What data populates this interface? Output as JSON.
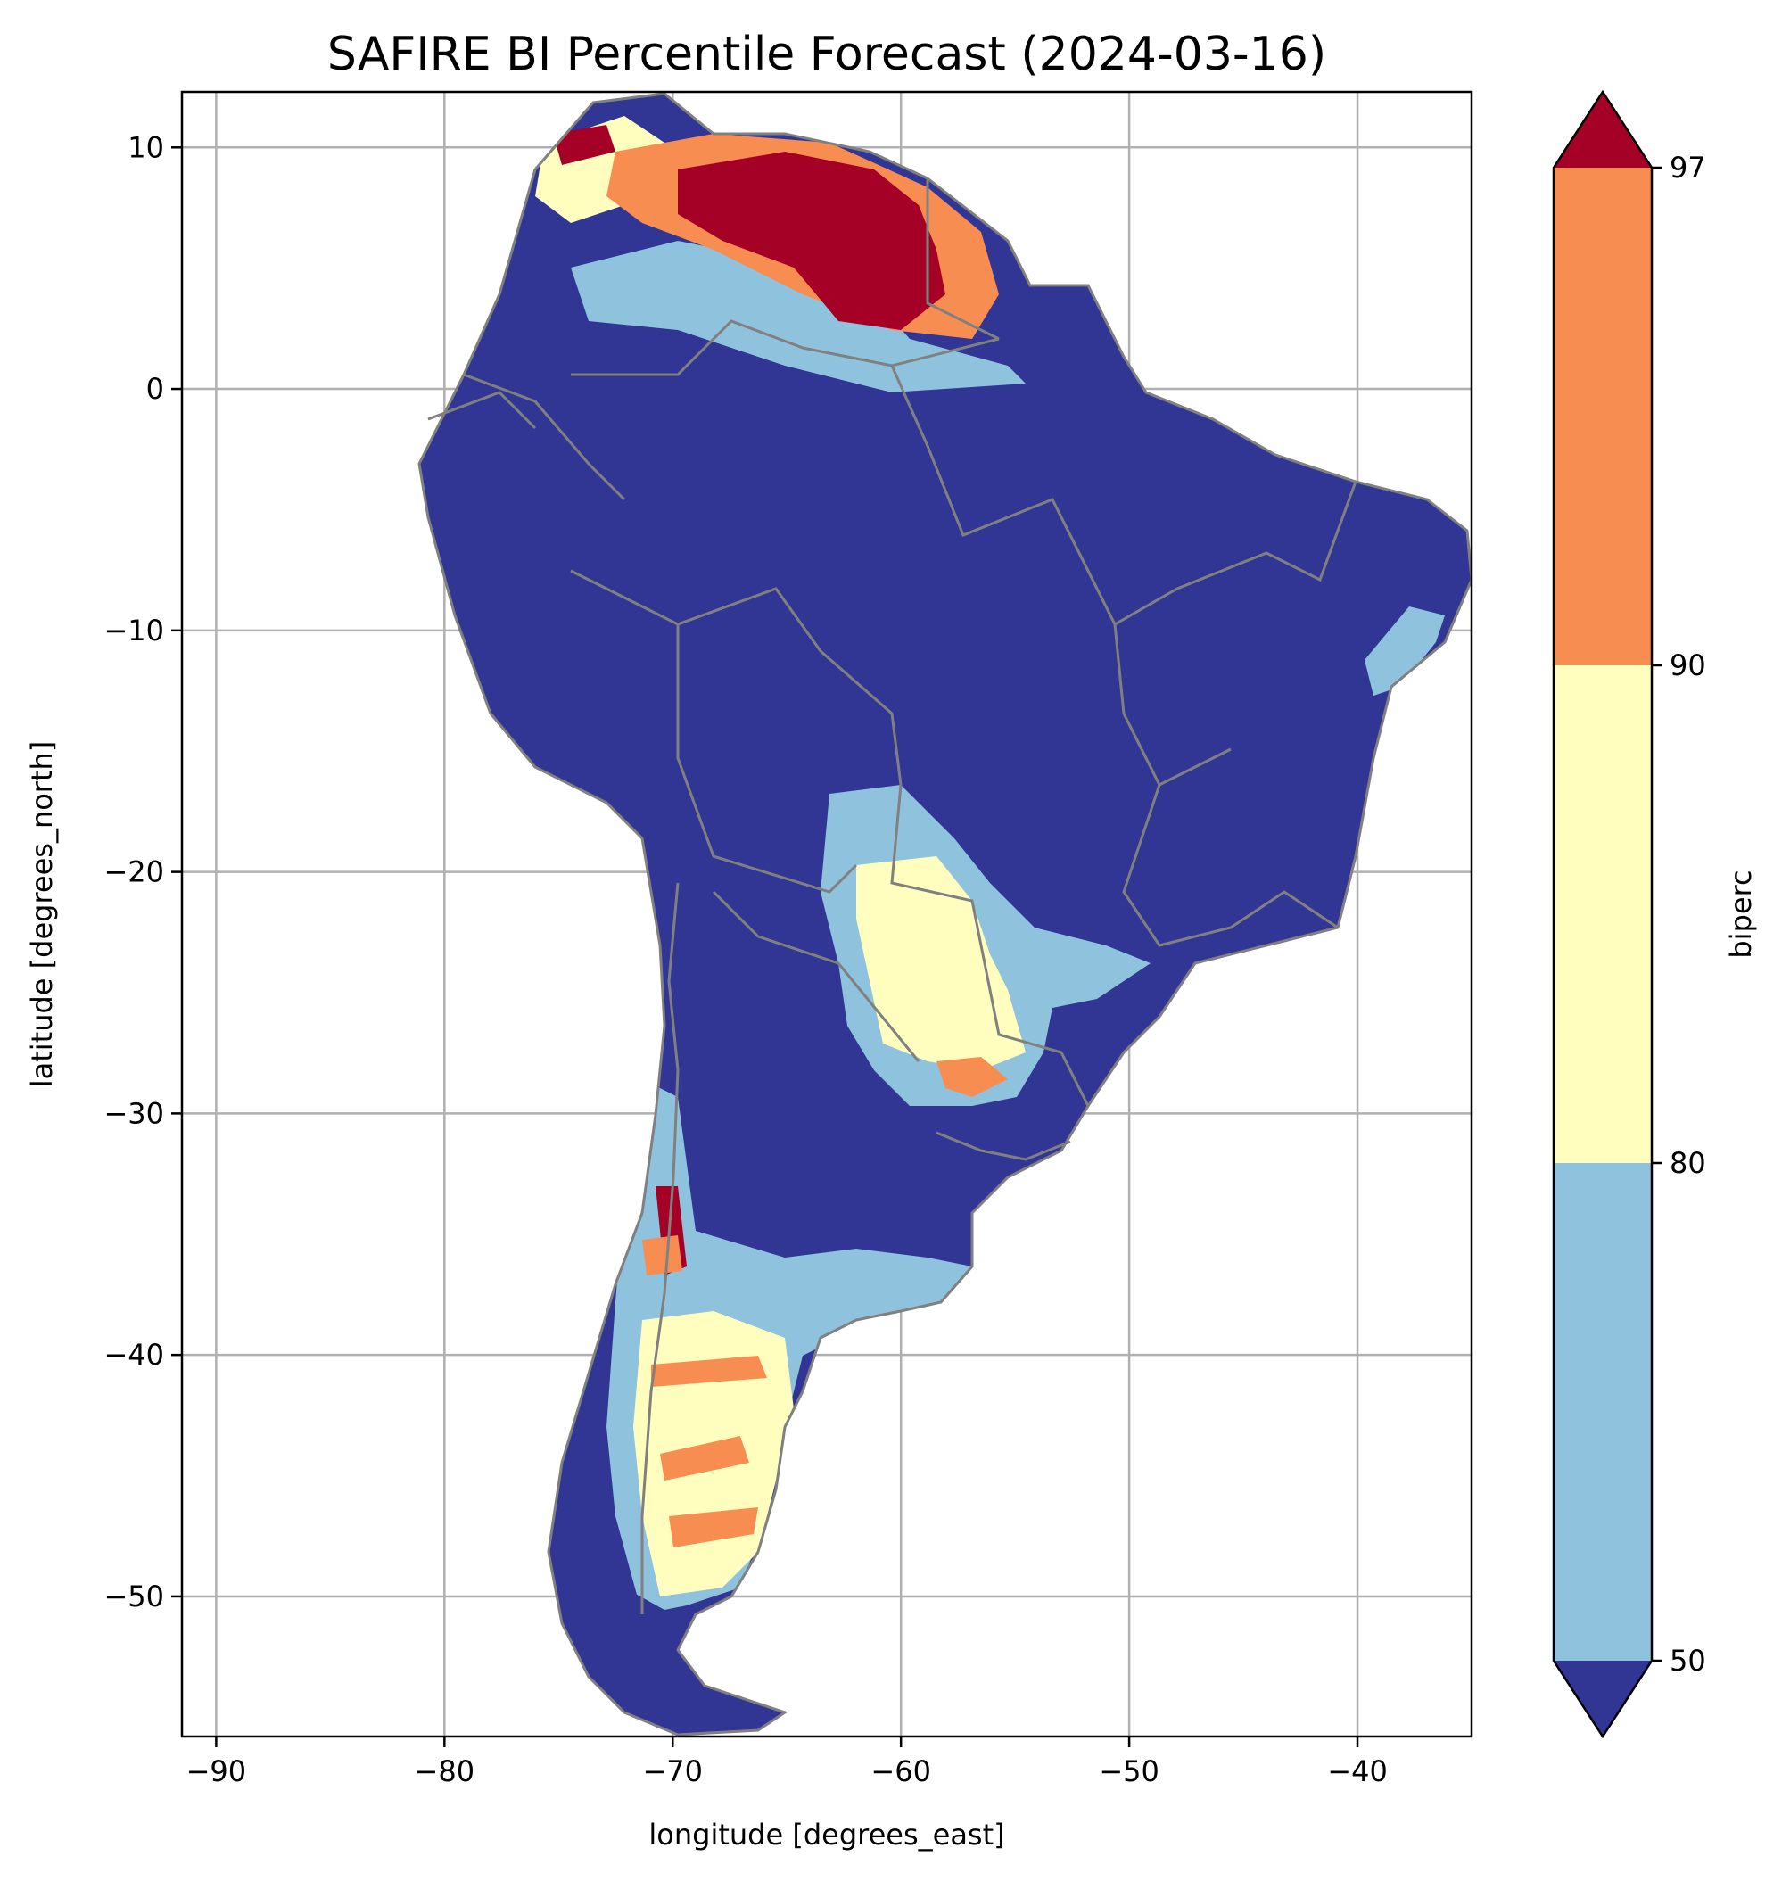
{
  "title": "SAFIRE BI Percentile Forecast (2024-03-16)",
  "map": {
    "xlabel": "longitude [degrees_east]",
    "ylabel": "latitude [degrees_north]",
    "x_ticks": [
      -90,
      -80,
      -70,
      -60,
      -50,
      -40
    ],
    "y_ticks": [
      10,
      0,
      -10,
      -20,
      -30,
      -40,
      -50
    ],
    "x_tick_labels": [
      "−90",
      "−80",
      "−70",
      "−60",
      "−50",
      "−40"
    ],
    "y_tick_labels": [
      "10",
      "0",
      "−10",
      "−20",
      "−30",
      "−40",
      "−50"
    ],
    "xlim": [
      -91.5,
      -35
    ],
    "ylim": [
      -55.8,
      12.3
    ],
    "grid": true,
    "ocean_color": "#ffffff",
    "land_color": "#313695",
    "border_color": "#808080",
    "gridline_color": "#b0b0b0"
  },
  "colorbar": {
    "label": "biperc",
    "tick_labels": [
      "50",
      "80",
      "90",
      "97"
    ],
    "extend": "both",
    "bins": [
      {
        "range": "<50",
        "color": "#313695"
      },
      {
        "range": "50-80",
        "color": "#8fc3dd"
      },
      {
        "range": "80-90",
        "color": "#fffebe"
      },
      {
        "range": "90-97",
        "color": "#f88d52"
      },
      {
        "range": ">97",
        "color": "#a50026"
      }
    ]
  }
}
